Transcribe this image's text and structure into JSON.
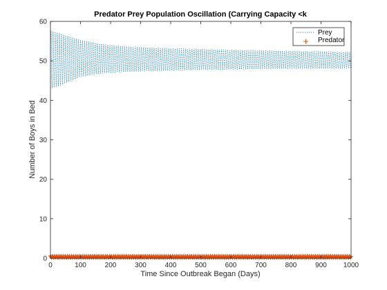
{
  "chart_data": {
    "type": "line",
    "title": "Predator Prey Population Oscillation (Carrying Capacity <k",
    "xlabel": "Time Since Outbreak Began (Days)",
    "ylabel": "Number of Boys in Bed",
    "xlim": [
      0,
      1000
    ],
    "ylim": [
      0,
      60
    ],
    "xticks": [
      0,
      100,
      200,
      300,
      400,
      500,
      600,
      700,
      800,
      900,
      1000
    ],
    "yticks": [
      0,
      10,
      20,
      30,
      40,
      50,
      60
    ],
    "grid": false,
    "legend_position": "top-right",
    "series": [
      {
        "name": "Prey",
        "style": "dotted",
        "color": "#0072bd",
        "envelope": {
          "x": [
            0,
            25,
            50,
            100,
            150,
            200,
            300,
            400,
            500,
            600,
            700,
            800,
            900,
            1000
          ],
          "upper": [
            57.8,
            57.3,
            56.6,
            55.4,
            54.6,
            54.0,
            53.5,
            53.2,
            53.0,
            52.8,
            52.7,
            52.5,
            52.4,
            52.3
          ],
          "lower": [
            42.8,
            43.4,
            44.2,
            45.8,
            46.6,
            47.0,
            47.3,
            47.5,
            47.7,
            47.8,
            47.9,
            48.0,
            48.0,
            48.1
          ]
        },
        "period_days": 7
      },
      {
        "name": "Predator",
        "style": "plus-markers",
        "color": "#d95319",
        "range": [
          0.1,
          0.6
        ]
      }
    ]
  }
}
